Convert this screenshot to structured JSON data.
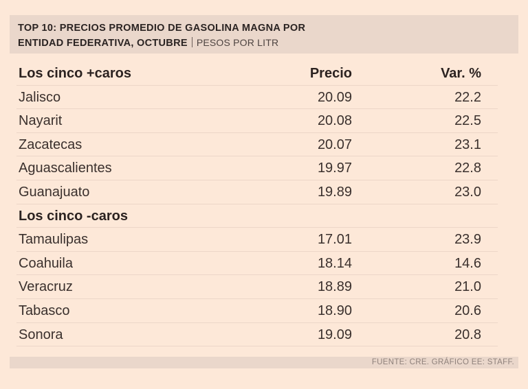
{
  "header": {
    "title_line1": "TOP 10: PRECIOS PROMEDIO DE GASOLINA MAGNA POR",
    "title_line2": "ENTIDAD FEDERATIVA, OCTUBRE",
    "unit": "PESOS POR LITR"
  },
  "chart_data": {
    "type": "table",
    "title": "TOP 10: PRECIOS PROMEDIO DE GASOLINA MAGNA POR ENTIDAD FEDERATIVA, OCTUBRE",
    "unit": "PESOS POR LITR",
    "columns": [
      "Los cinco +caros",
      "Precio",
      "Var. %"
    ],
    "groups": [
      {
        "label": "Los cinco +caros",
        "rows": [
          {
            "state": "Jalisco",
            "precio": "20.09",
            "var": "22.2"
          },
          {
            "state": "Nayarit",
            "precio": "20.08",
            "var": "22.5"
          },
          {
            "state": "Zacatecas",
            "precio": "20.07",
            "var": "23.1"
          },
          {
            "state": "Aguascalientes",
            "precio": "19.97",
            "var": "22.8"
          },
          {
            "state": "Guanajuato",
            "precio": "19.89",
            "var": "23.0"
          }
        ]
      },
      {
        "label": "Los cinco -caros",
        "rows": [
          {
            "state": "Tamaulipas",
            "precio": "17.01",
            "var": "23.9"
          },
          {
            "state": "Coahuila",
            "precio": "18.14",
            "var": "14.6"
          },
          {
            "state": "Veracruz",
            "precio": "18.89",
            "var": "21.0"
          },
          {
            "state": "Tabasco",
            "precio": "18.90",
            "var": "20.6"
          },
          {
            "state": "Sonora",
            "precio": "19.09",
            "var": "20.8"
          }
        ]
      }
    ],
    "source": "FUENTE: CRE. GRÁFICO EE: STAFF."
  },
  "footer": {
    "source": "FUENTE: CRE. GRÁFICO EE: STAFF."
  }
}
